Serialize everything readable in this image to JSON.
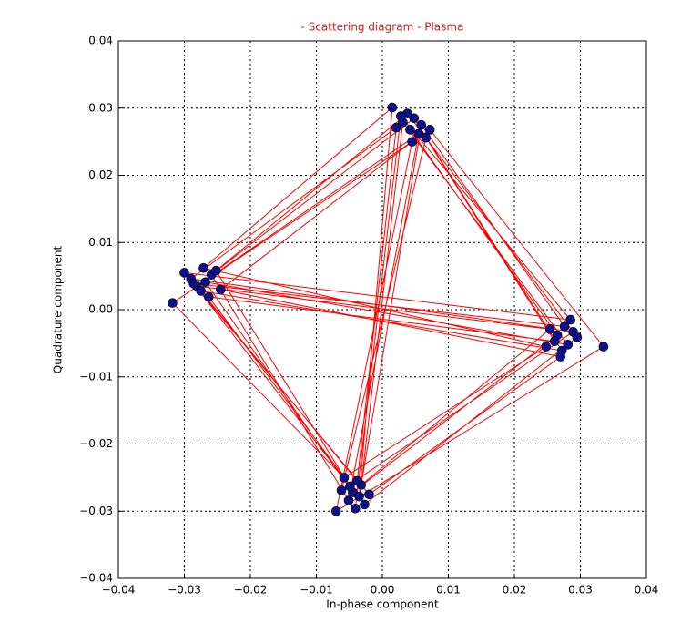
{
  "chart_data": {
    "type": "scatter",
    "title": "- Scattering diagram - Plasma",
    "x_label": "In-phase component",
    "y_label": "Quadrature component",
    "x": [
      0.0042,
      0.0265,
      -0.0045,
      -0.0268,
      0.0281,
      0.0031,
      -0.0032,
      0.0254,
      -0.0281,
      0.0055,
      -0.0051,
      -0.0259,
      0.0048,
      0.0272,
      -0.0275,
      -0.0038,
      0.0021,
      -0.029,
      0.0289,
      -0.0062,
      0.0066,
      0.0261,
      -0.0263,
      -0.0027,
      0.0295,
      0.0038,
      -0.0252,
      -0.0049,
      -0.0286,
      0.0276,
      0.0059,
      -0.0035,
      0.0015,
      -0.0271,
      0.0248,
      -0.0058,
      -0.0318,
      0.0072,
      0.0335,
      -0.007,
      0.0045,
      -0.0245,
      0.027,
      -0.002,
      -0.03,
      0.0285,
      0.0028,
      -0.0041
    ],
    "values": [
      0.0268,
      -0.0038,
      -0.0272,
      0.0041,
      -0.0052,
      0.0279,
      -0.0261,
      -0.0029,
      0.0035,
      0.0262,
      -0.0284,
      0.0052,
      0.0285,
      -0.0061,
      0.0028,
      -0.0255,
      0.0271,
      0.0046,
      -0.0033,
      -0.0269,
      0.0256,
      -0.0047,
      0.0019,
      -0.029,
      -0.0041,
      0.0292,
      0.0058,
      -0.0263,
      0.0039,
      -0.0025,
      0.0275,
      -0.0278,
      0.0301,
      0.0062,
      -0.0055,
      -0.025,
      0.001,
      0.0268,
      -0.0055,
      -0.03,
      0.025,
      0.003,
      -0.007,
      -0.0275,
      0.0055,
      -0.0015,
      0.0288,
      -0.0296
    ],
    "color": "#10108a",
    "line_color": "#ff0000",
    "title_color": "#d02020",
    "xlim": [
      -0.04,
      0.04
    ],
    "ylim": [
      -0.04,
      0.04
    ],
    "xticks": [
      {
        "value": -0.04,
        "label": "−0.04"
      },
      {
        "value": -0.03,
        "label": "−0.03"
      },
      {
        "value": -0.02,
        "label": "−0.02"
      },
      {
        "value": -0.01,
        "label": "−0.01"
      },
      {
        "value": 0,
        "label": "0.00"
      },
      0.01,
      0.02,
      0.03,
      0.04
    ],
    "yticks": [
      {
        "value": -0.04,
        "label": "−0.04"
      },
      {
        "value": -0.03,
        "label": "−0.03"
      },
      {
        "value": -0.02,
        "label": "−0.02"
      },
      {
        "value": -0.01,
        "label": "−0.01"
      },
      {
        "value": 0,
        "label": "0.00"
      },
      0.01,
      0.02,
      0.03,
      0.04
    ],
    "grid": true
  }
}
